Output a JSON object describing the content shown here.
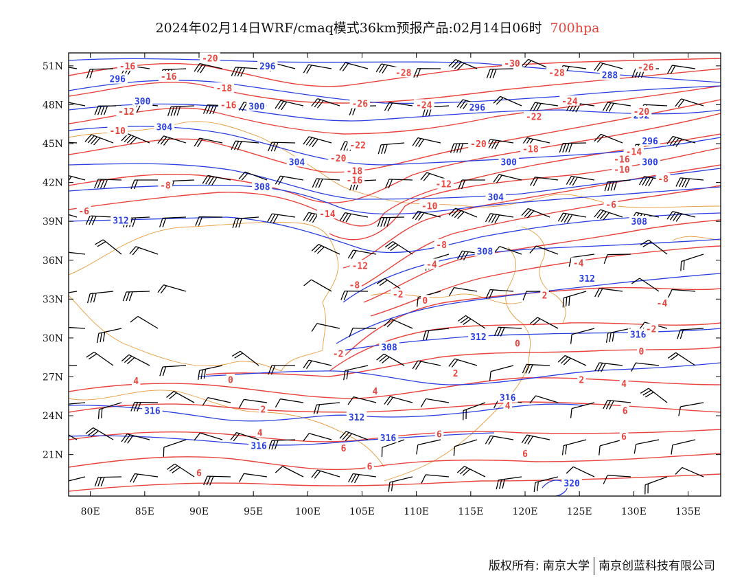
{
  "title": {
    "text": "2024年02月14日WRF/cmaq模式36km预报产品:02月14日06时",
    "level": "700hpa"
  },
  "colors": {
    "height_contour": "#2a3fe0",
    "temp_contour": "#e8433c",
    "coast_border": "#e89a3c",
    "wind_barb": "#000000",
    "level_text": "#e8433c"
  },
  "axes": {
    "lon_ticks": [
      "80E",
      "85E",
      "90E",
      "95E",
      "100E",
      "105E",
      "110E",
      "115E",
      "120E",
      "125E",
      "130E",
      "135E"
    ],
    "lat_ticks": [
      "51N",
      "48N",
      "45N",
      "42N",
      "39N",
      "36N",
      "33N",
      "30N",
      "27N",
      "24N",
      "21N"
    ],
    "lon_range": [
      78,
      138
    ],
    "lat_range": [
      17.8,
      52
    ]
  },
  "height_labels": [
    {
      "text": "296",
      "lon": 82.5,
      "lat": 50.0
    },
    {
      "text": "296",
      "lon": 96.3,
      "lat": 51.0
    },
    {
      "text": "300",
      "lon": 84.8,
      "lat": 48.3
    },
    {
      "text": "300",
      "lon": 95.3,
      "lat": 47.9
    },
    {
      "text": "304",
      "lon": 86.8,
      "lat": 46.3
    },
    {
      "text": "304",
      "lon": 99.0,
      "lat": 43.6
    },
    {
      "text": "308",
      "lon": 95.8,
      "lat": 41.7
    },
    {
      "text": "312",
      "lon": 82.8,
      "lat": 39.1
    },
    {
      "text": "296",
      "lon": 115.6,
      "lat": 47.8
    },
    {
      "text": "288",
      "lon": 127.8,
      "lat": 50.3
    },
    {
      "text": "292",
      "lon": 130.7,
      "lat": 47.2
    },
    {
      "text": "296",
      "lon": 131.5,
      "lat": 45.2
    },
    {
      "text": "300",
      "lon": 118.5,
      "lat": 43.6
    },
    {
      "text": "300",
      "lon": 131.5,
      "lat": 43.6
    },
    {
      "text": "304",
      "lon": 117.3,
      "lat": 40.9
    },
    {
      "text": "308",
      "lon": 130.5,
      "lat": 39.0
    },
    {
      "text": "308",
      "lon": 116.3,
      "lat": 36.7
    },
    {
      "text": "312",
      "lon": 125.7,
      "lat": 34.6
    },
    {
      "text": "312",
      "lon": 115.7,
      "lat": 30.1
    },
    {
      "text": "316",
      "lon": 130.4,
      "lat": 30.3
    },
    {
      "text": "308",
      "lon": 107.5,
      "lat": 29.3
    },
    {
      "text": "316",
      "lon": 118.4,
      "lat": 25.4
    },
    {
      "text": "312",
      "lon": 104.5,
      "lat": 23.9
    },
    {
      "text": "316",
      "lon": 85.7,
      "lat": 24.4
    },
    {
      "text": "316",
      "lon": 107.4,
      "lat": 22.3
    },
    {
      "text": "316",
      "lon": 95.5,
      "lat": 21.7
    },
    {
      "text": "320",
      "lon": 124.3,
      "lat": 18.8
    }
  ],
  "temp_labels": [
    {
      "text": "-16",
      "lon": 83.4,
      "lat": 51.0
    },
    {
      "text": "-20",
      "lon": 91.0,
      "lat": 51.6
    },
    {
      "text": "-16",
      "lon": 87.2,
      "lat": 50.2
    },
    {
      "text": "-18",
      "lon": 92.3,
      "lat": 49.3
    },
    {
      "text": "-16",
      "lon": 92.7,
      "lat": 48.0
    },
    {
      "text": "-12",
      "lon": 83.3,
      "lat": 47.5
    },
    {
      "text": "-10",
      "lon": 82.5,
      "lat": 46.0
    },
    {
      "text": "-8",
      "lon": 86.9,
      "lat": 41.8
    },
    {
      "text": "-6",
      "lon": 79.4,
      "lat": 39.8
    },
    {
      "text": "-30",
      "lon": 118.8,
      "lat": 51.2
    },
    {
      "text": "-28",
      "lon": 108.8,
      "lat": 50.5
    },
    {
      "text": "-26",
      "lon": 104.8,
      "lat": 48.1
    },
    {
      "text": "-24",
      "lon": 110.7,
      "lat": 48.0
    },
    {
      "text": "-28",
      "lon": 122.9,
      "lat": 50.5
    },
    {
      "text": "-26",
      "lon": 131.1,
      "lat": 50.9
    },
    {
      "text": "-24",
      "lon": 124.1,
      "lat": 48.3
    },
    {
      "text": "-22",
      "lon": 120.8,
      "lat": 47.1
    },
    {
      "text": "-20",
      "lon": 130.7,
      "lat": 47.5
    },
    {
      "text": "-22",
      "lon": 104.6,
      "lat": 44.9
    },
    {
      "text": "-20",
      "lon": 115.7,
      "lat": 45.0
    },
    {
      "text": "-18",
      "lon": 120.5,
      "lat": 44.6
    },
    {
      "text": "-20",
      "lon": 102.8,
      "lat": 43.9
    },
    {
      "text": "-14",
      "lon": 130.0,
      "lat": 44.4
    },
    {
      "text": "-18",
      "lon": 104.3,
      "lat": 42.9
    },
    {
      "text": "-16",
      "lon": 104.3,
      "lat": 42.2
    },
    {
      "text": "-16",
      "lon": 128.9,
      "lat": 43.8
    },
    {
      "text": "-10",
      "lon": 128.9,
      "lat": 43.0
    },
    {
      "text": "-12",
      "lon": 112.5,
      "lat": 41.9
    },
    {
      "text": "-8",
      "lon": 132.7,
      "lat": 42.3
    },
    {
      "text": "-10",
      "lon": 111.2,
      "lat": 40.2
    },
    {
      "text": "-14",
      "lon": 101.8,
      "lat": 39.6
    },
    {
      "text": "-6",
      "lon": 127.9,
      "lat": 40.3
    },
    {
      "text": "-8",
      "lon": 112.3,
      "lat": 37.2
    },
    {
      "text": "-4",
      "lon": 111.4,
      "lat": 35.7
    },
    {
      "text": "-4",
      "lon": 124.9,
      "lat": 35.8
    },
    {
      "text": "-12",
      "lon": 104.8,
      "lat": 35.6
    },
    {
      "text": "-8",
      "lon": 104.3,
      "lat": 34.1
    },
    {
      "text": "-2",
      "lon": 108.3,
      "lat": 33.4
    },
    {
      "text": "0",
      "lon": 110.8,
      "lat": 32.9
    },
    {
      "text": "2",
      "lon": 121.8,
      "lat": 33.3
    },
    {
      "text": "-4",
      "lon": 132.6,
      "lat": 32.7
    },
    {
      "text": "-2",
      "lon": 131.6,
      "lat": 30.7
    },
    {
      "text": "0",
      "lon": 119.3,
      "lat": 29.6
    },
    {
      "text": "0",
      "lon": 130.7,
      "lat": 29.0
    },
    {
      "text": "-2",
      "lon": 102.8,
      "lat": 28.8
    },
    {
      "text": "0",
      "lon": 92.9,
      "lat": 26.8
    },
    {
      "text": "2",
      "lon": 113.6,
      "lat": 27.3
    },
    {
      "text": "2",
      "lon": 125.2,
      "lat": 26.8
    },
    {
      "text": "4",
      "lon": 84.2,
      "lat": 26.7
    },
    {
      "text": "4",
      "lon": 129.1,
      "lat": 26.5
    },
    {
      "text": "4",
      "lon": 106.2,
      "lat": 25.9
    },
    {
      "text": "2",
      "lon": 95.9,
      "lat": 24.5
    },
    {
      "text": "4",
      "lon": 118.4,
      "lat": 24.8
    },
    {
      "text": "6",
      "lon": 129.2,
      "lat": 24.4
    },
    {
      "text": "4",
      "lon": 95.6,
      "lat": 22.7
    },
    {
      "text": "6",
      "lon": 112.1,
      "lat": 22.6
    },
    {
      "text": "6",
      "lon": 129.1,
      "lat": 22.4
    },
    {
      "text": "6",
      "lon": 103.3,
      "lat": 21.5
    },
    {
      "text": "6",
      "lon": 120.0,
      "lat": 21.1
    },
    {
      "text": "6",
      "lon": 90.0,
      "lat": 19.6
    },
    {
      "text": "6",
      "lon": 105.7,
      "lat": 20.1
    }
  ],
  "footer": {
    "left": "版权所有: 南京大学",
    "right": "南京创蓝科技有限公司"
  }
}
